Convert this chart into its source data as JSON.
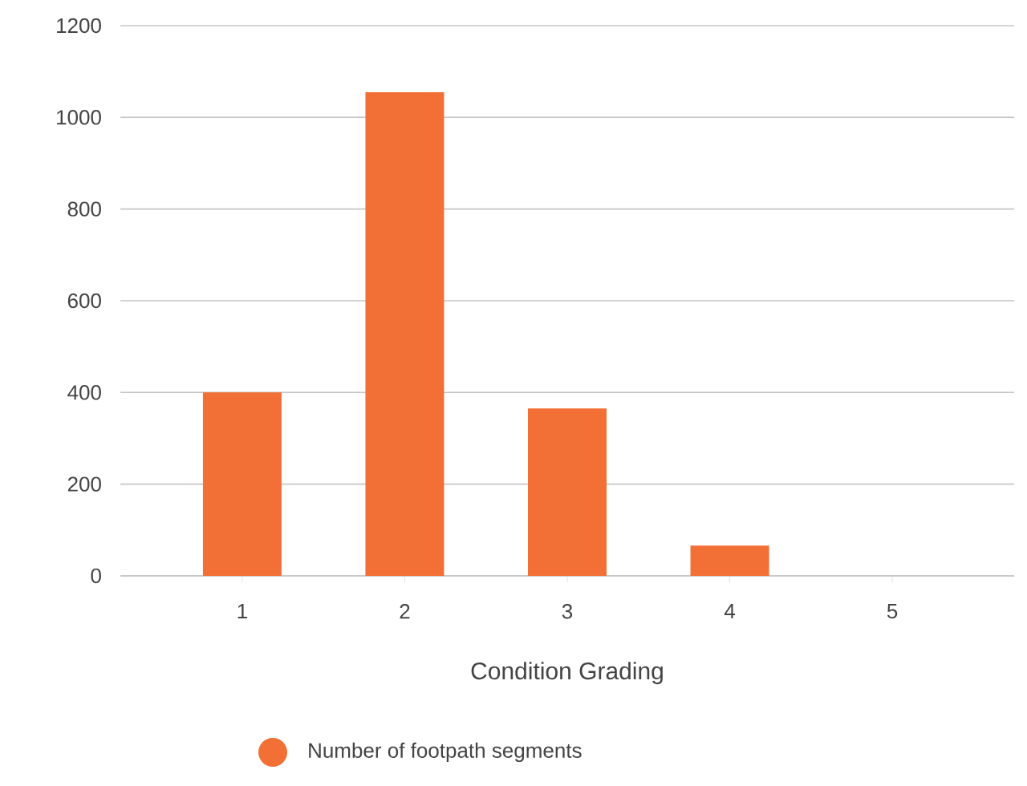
{
  "chart_data": {
    "type": "bar",
    "xlabel": "Condition Grading",
    "categories": [
      "1",
      "2",
      "3",
      "4",
      "5"
    ],
    "series": [
      {
        "name": "Number of footpath segments",
        "color": "#f26f35",
        "values": [
          400,
          1055,
          365,
          66,
          0
        ]
      }
    ],
    "ylim": [
      0,
      1200
    ],
    "yticks": [
      0,
      200,
      400,
      600,
      800,
      1000,
      1200
    ],
    "grid": "y",
    "legend": "bottom"
  }
}
